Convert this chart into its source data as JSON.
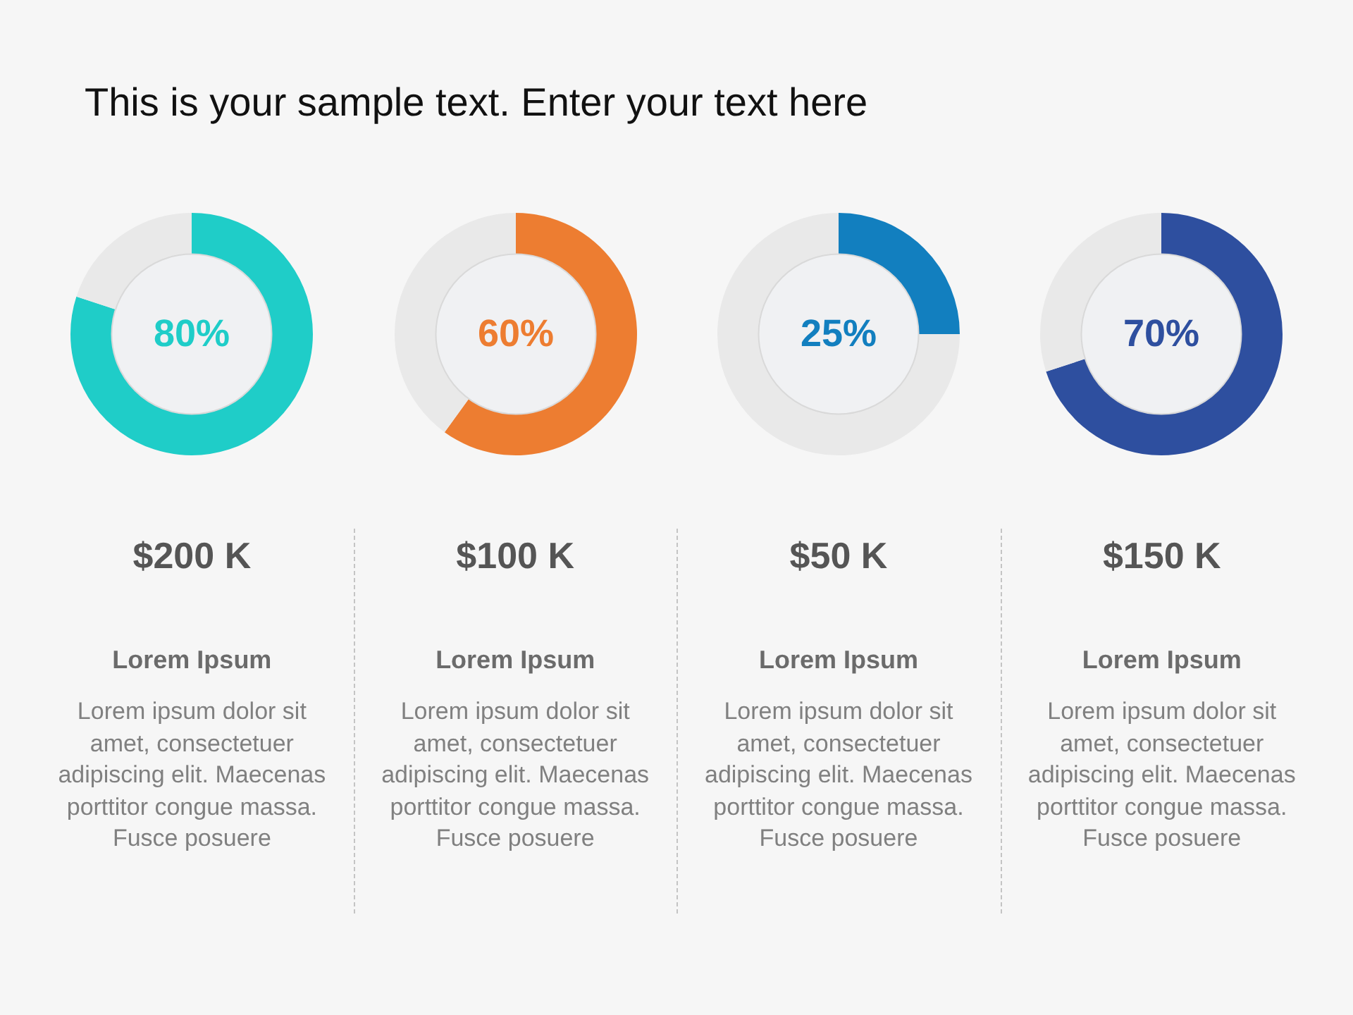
{
  "chart_data": [
    {
      "type": "donut",
      "title": "This is your sample text. Enter your text here",
      "categories": [
        null,
        null
      ],
      "values": [
        80,
        20
      ],
      "colors": [
        "#1fcdc8",
        "#e9e9e9"
      ],
      "value_labels": [
        "80%",
        null
      ],
      "annotations": [
        "$200 K",
        "Lorem Ipsum",
        "Lorem ipsum dolor sit amet, consectetuer adipiscing elit. Maecenas porttitor congue massa. Fusce posuere"
      ]
    },
    {
      "type": "donut",
      "categories": [
        null,
        null
      ],
      "values": [
        60,
        40
      ],
      "colors": [
        "#ed7d31",
        "#e9e9e9"
      ],
      "value_labels": [
        "60%",
        null
      ],
      "annotations": [
        "$100 K",
        "Lorem Ipsum",
        "Lorem ipsum dolor sit amet, consectetuer adipiscing elit. Maecenas porttitor congue massa. Fusce posuere"
      ]
    },
    {
      "type": "donut",
      "categories": [
        null,
        null
      ],
      "values": [
        25,
        75
      ],
      "colors": [
        "#127fbf",
        "#e9e9e9"
      ],
      "value_labels": [
        "25%",
        null
      ],
      "annotations": [
        "$50 K",
        "Lorem Ipsum",
        "Lorem ipsum dolor sit amet, consectetuer adipiscing elit. Maecenas porttitor congue massa. Fusce posuere"
      ]
    },
    {
      "type": "donut",
      "categories": [
        null,
        null
      ],
      "values": [
        70,
        30
      ],
      "colors": [
        "#2e4f9f",
        "#e9e9e9"
      ],
      "value_labels": [
        "70%",
        null
      ],
      "annotations": [
        "$150 K",
        "Lorem Ipsum",
        "Lorem ipsum dolor sit amet, consectetuer adipiscing elit. Maecenas porttitor congue massa. Fusce posuere"
      ]
    }
  ]
}
